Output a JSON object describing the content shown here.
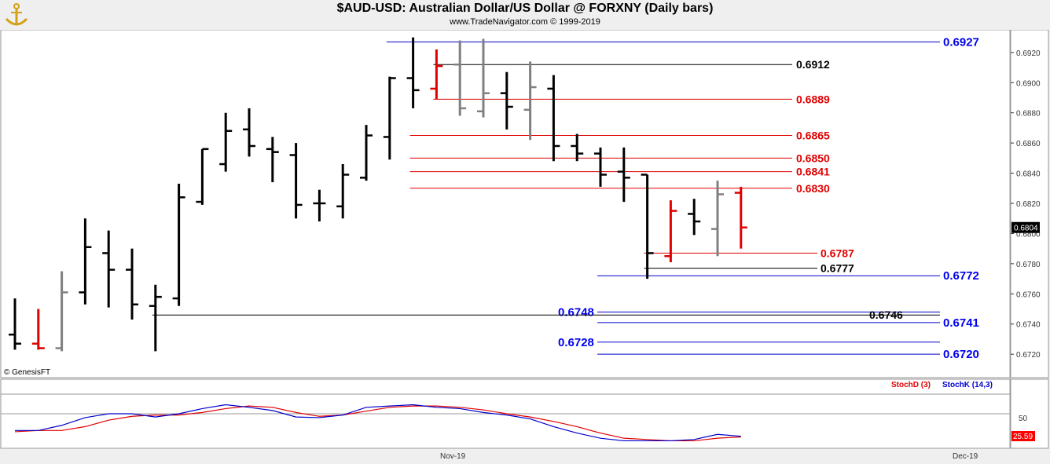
{
  "header": {
    "title": "$AUD-USD:  Australian Dollar/US Dollar @ FORXNY  (Daily bars)",
    "subtitle": "www.TradeNavigator.com © 1999-2019",
    "copyright": "© GenesisFT"
  },
  "colors": {
    "up": "#000000",
    "down": "#e00000",
    "neutral": "#808080",
    "blue": "#0000cc",
    "red": "#e00000"
  },
  "chart_data": {
    "type": "ohlc",
    "ylim": [
      0.6705,
      0.6935
    ],
    "yticks": [
      "0.6720",
      "0.6740",
      "0.6760",
      "0.6780",
      "0.6800",
      "0.6820",
      "0.6840",
      "0.6860",
      "0.6880",
      "0.6900",
      "0.6920"
    ],
    "last_price": "0.6804",
    "x_labels": [
      "Nov-19",
      "Dec-19"
    ],
    "bars": [
      {
        "o": 0.6733,
        "h": 0.6757,
        "l": 0.6723,
        "c": 0.6727,
        "k": "up"
      },
      {
        "o": 0.6727,
        "h": 0.675,
        "l": 0.6723,
        "c": 0.6724,
        "k": "down"
      },
      {
        "o": 0.6724,
        "h": 0.6775,
        "l": 0.6722,
        "c": 0.6761,
        "k": "neutral"
      },
      {
        "o": 0.6761,
        "h": 0.681,
        "l": 0.6753,
        "c": 0.6791,
        "k": "up"
      },
      {
        "o": 0.6787,
        "h": 0.6802,
        "l": 0.6751,
        "c": 0.6776,
        "k": "up"
      },
      {
        "o": 0.6776,
        "h": 0.679,
        "l": 0.6743,
        "c": 0.6753,
        "k": "up"
      },
      {
        "o": 0.6752,
        "h": 0.6766,
        "l": 0.6722,
        "c": 0.6758,
        "k": "up"
      },
      {
        "o": 0.6757,
        "h": 0.6833,
        "l": 0.6752,
        "c": 0.6824,
        "k": "up"
      },
      {
        "o": 0.6821,
        "h": 0.6856,
        "l": 0.6819,
        "c": 0.6856,
        "k": "up"
      },
      {
        "o": 0.6846,
        "h": 0.688,
        "l": 0.6841,
        "c": 0.6868,
        "k": "up"
      },
      {
        "o": 0.6869,
        "h": 0.6883,
        "l": 0.6851,
        "c": 0.6858,
        "k": "up"
      },
      {
        "o": 0.6856,
        "h": 0.6864,
        "l": 0.6834,
        "c": 0.6854,
        "k": "up"
      },
      {
        "o": 0.6852,
        "h": 0.686,
        "l": 0.681,
        "c": 0.6819,
        "k": "up"
      },
      {
        "o": 0.682,
        "h": 0.6829,
        "l": 0.6808,
        "c": 0.682,
        "k": "up"
      },
      {
        "o": 0.6818,
        "h": 0.6846,
        "l": 0.681,
        "c": 0.6839,
        "k": "up"
      },
      {
        "o": 0.6837,
        "h": 0.6872,
        "l": 0.6835,
        "c": 0.6865,
        "k": "up"
      },
      {
        "o": 0.6864,
        "h": 0.6904,
        "l": 0.6849,
        "c": 0.6903,
        "k": "up"
      },
      {
        "o": 0.6903,
        "h": 0.693,
        "l": 0.6883,
        "c": 0.6895,
        "k": "up"
      },
      {
        "o": 0.6896,
        "h": 0.6922,
        "l": 0.6889,
        "c": 0.6911,
        "k": "down"
      },
      {
        "o": 0.6912,
        "h": 0.6928,
        "l": 0.6878,
        "c": 0.6883,
        "k": "neutral"
      },
      {
        "o": 0.6881,
        "h": 0.6929,
        "l": 0.6877,
        "c": 0.6893,
        "k": "neutral"
      },
      {
        "o": 0.6893,
        "h": 0.6907,
        "l": 0.6869,
        "c": 0.6884,
        "k": "up"
      },
      {
        "o": 0.6882,
        "h": 0.6914,
        "l": 0.6862,
        "c": 0.6897,
        "k": "neutral"
      },
      {
        "o": 0.6896,
        "h": 0.6905,
        "l": 0.6848,
        "c": 0.6858,
        "k": "up"
      },
      {
        "o": 0.6858,
        "h": 0.6866,
        "l": 0.6848,
        "c": 0.6853,
        "k": "up"
      },
      {
        "o": 0.6853,
        "h": 0.6857,
        "l": 0.6831,
        "c": 0.6839,
        "k": "up"
      },
      {
        "o": 0.6841,
        "h": 0.6857,
        "l": 0.6821,
        "c": 0.6837,
        "k": "up"
      },
      {
        "o": 0.6839,
        "h": 0.6839,
        "l": 0.677,
        "c": 0.6787,
        "k": "up"
      },
      {
        "o": 0.6785,
        "h": 0.6822,
        "l": 0.6781,
        "c": 0.6815,
        "k": "down"
      },
      {
        "o": 0.6813,
        "h": 0.6823,
        "l": 0.6799,
        "c": 0.6808,
        "k": "up"
      },
      {
        "o": 0.6803,
        "h": 0.6835,
        "l": 0.6785,
        "c": 0.6826,
        "k": "neutral"
      },
      {
        "o": 0.6827,
        "h": 0.6831,
        "l": 0.679,
        "c": 0.6804,
        "k": "down"
      }
    ],
    "levels": [
      {
        "value": 0.6927,
        "label": "0.6927",
        "color": "blue",
        "from": 16,
        "label_pos": "right"
      },
      {
        "value": 0.6912,
        "label": "0.6912",
        "color": "black",
        "from": 18,
        "label_pos": "end"
      },
      {
        "value": 0.6889,
        "label": "0.6889",
        "color": "red",
        "from": 18,
        "label_pos": "end"
      },
      {
        "value": 0.6865,
        "label": "0.6865",
        "color": "red",
        "from": 17,
        "label_pos": "end"
      },
      {
        "value": 0.685,
        "label": "0.6850",
        "color": "red",
        "from": 17,
        "label_pos": "end"
      },
      {
        "value": 0.6841,
        "label": "0.6841",
        "color": "red",
        "from": 17,
        "label_pos": "end"
      },
      {
        "value": 0.683,
        "label": "0.6830",
        "color": "red",
        "from": 17,
        "label_pos": "end"
      },
      {
        "value": 0.6787,
        "label": "0.6787",
        "color": "red",
        "from": 27,
        "label_pos": "mid"
      },
      {
        "value": 0.6777,
        "label": "0.6777",
        "color": "black",
        "from": 27,
        "label_pos": "mid"
      },
      {
        "value": 0.6772,
        "label": "0.6772",
        "color": "blue",
        "from": 25,
        "label_pos": "right"
      },
      {
        "value": 0.6748,
        "label": "0.6748",
        "color": "blue",
        "from": 25,
        "label_pos": "left"
      },
      {
        "value": 0.6746,
        "label": "0.6746",
        "color": "black",
        "from": 6,
        "label_pos": "far"
      },
      {
        "value": 0.6741,
        "label": "0.6741",
        "color": "blue",
        "from": 25,
        "label_pos": "right"
      },
      {
        "value": 0.6728,
        "label": "0.6728",
        "color": "blue",
        "from": 25,
        "label_pos": "left"
      },
      {
        "value": 0.672,
        "label": "0.6720",
        "color": "blue",
        "from": 25,
        "label_pos": "right"
      }
    ],
    "stochastic": {
      "legend_d": "StochD (3)",
      "legend_k": "StochK (14,3)",
      "level_label": "50",
      "last_label": "25.59",
      "ylim": [
        0,
        100
      ],
      "k": [
        24,
        24,
        32,
        44,
        50,
        50,
        45,
        50,
        58,
        64,
        60,
        55,
        45,
        44,
        48,
        60,
        62,
        64,
        60,
        58,
        52,
        48,
        42,
        30,
        20,
        12,
        8,
        8,
        8,
        10,
        18,
        15
      ],
      "d": [
        22,
        24,
        24,
        30,
        40,
        46,
        48,
        48,
        52,
        58,
        62,
        60,
        52,
        46,
        48,
        54,
        60,
        62,
        62,
        60,
        56,
        50,
        45,
        38,
        30,
        20,
        12,
        10,
        8,
        8,
        12,
        14
      ]
    }
  }
}
